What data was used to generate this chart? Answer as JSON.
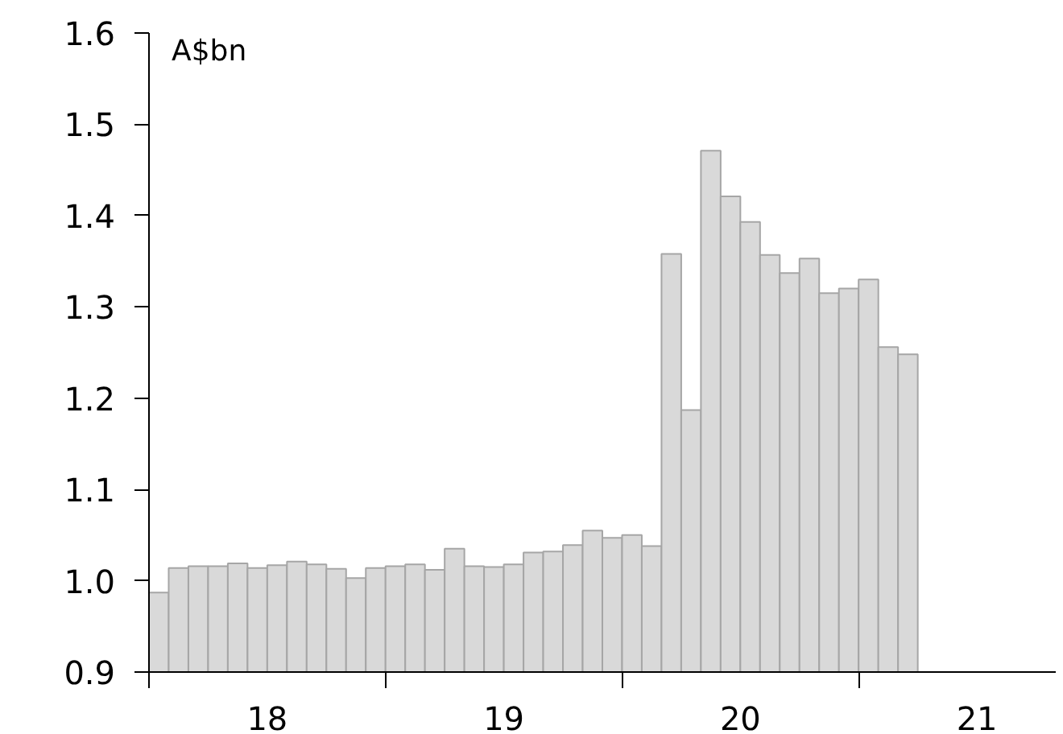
{
  "chart_data": {
    "type": "bar",
    "ylabel": "A$bn",
    "color": "#d9d9d9",
    "x": [
      "2018-01",
      "2018-02",
      "2018-03",
      "2018-04",
      "2018-05",
      "2018-06",
      "2018-07",
      "2018-08",
      "2018-09",
      "2018-10",
      "2018-11",
      "2018-12",
      "2019-01",
      "2019-02",
      "2019-03",
      "2019-04",
      "2019-05",
      "2019-06",
      "2019-07",
      "2019-08",
      "2019-09",
      "2019-10",
      "2019-11",
      "2019-12",
      "2020-01",
      "2020-02",
      "2020-03",
      "2020-04",
      "2020-05",
      "2020-06",
      "2020-07",
      "2020-08",
      "2020-09",
      "2020-10",
      "2020-11",
      "2020-12",
      "2021-01",
      "2021-02",
      "2021-03"
    ],
    "values": [
      0.987,
      1.014,
      1.016,
      1.016,
      1.019,
      1.014,
      1.017,
      1.021,
      1.018,
      1.013,
      1.003,
      1.014,
      1.016,
      1.018,
      1.012,
      1.035,
      1.016,
      1.015,
      1.018,
      1.031,
      1.032,
      1.039,
      1.055,
      1.047,
      1.05,
      1.038,
      1.358,
      1.187,
      1.471,
      1.421,
      1.393,
      1.357,
      1.337,
      1.353,
      1.315,
      1.32,
      1.33,
      1.256,
      1.248
    ],
    "xlim": [
      "2018-01",
      "2021-11"
    ],
    "xticks": [
      {
        "value": "2018-01",
        "label": null
      },
      {
        "value": "2018-07",
        "label": "18"
      },
      {
        "value": "2019-01",
        "label": null
      },
      {
        "value": "2019-07",
        "label": "19"
      },
      {
        "value": "2020-01",
        "label": null
      },
      {
        "value": "2020-07",
        "label": "20"
      },
      {
        "value": "2021-01",
        "label": null
      },
      {
        "value": "2021-07",
        "label": "21"
      }
    ],
    "ylim": [
      0.9,
      1.6
    ],
    "yticks": [
      0.9,
      {
        "value": 1,
        "label": "1.0"
      },
      1.1,
      1.2,
      1.3,
      1.4,
      1.5,
      1.6
    ],
    "grid": false
  }
}
